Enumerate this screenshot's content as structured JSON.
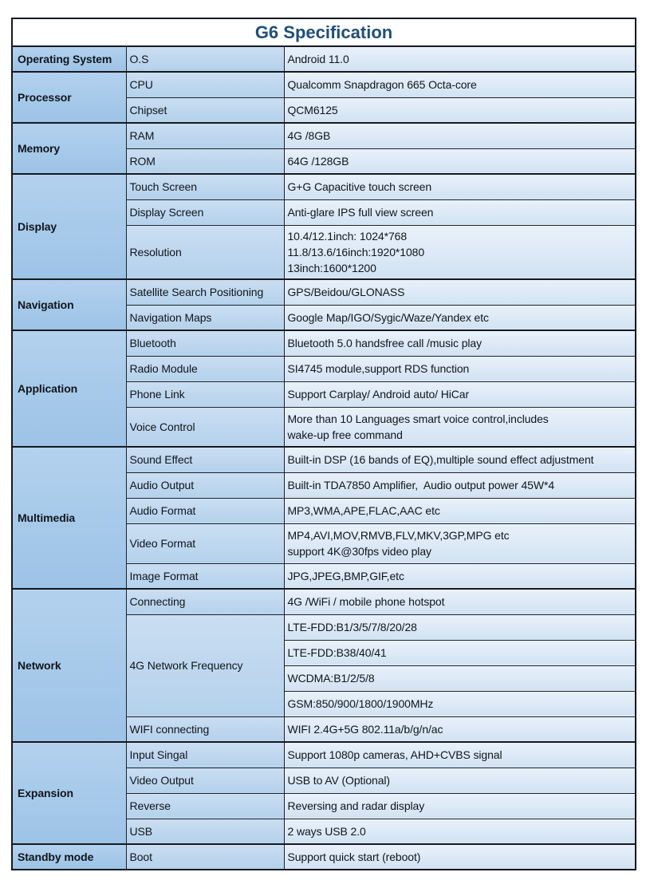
{
  "title": "G6 Specification",
  "colors": {
    "title_text": "#1f4e79",
    "border": "#15191f",
    "category_bg_top": "#b2d1ee",
    "category_bg_bottom": "#9dc3e6",
    "label_bg_top": "#cadef2",
    "label_bg_bottom": "#b4d1eb",
    "value_bg_top": "#e8f1fa",
    "value_bg_bottom": "#d2e2f2",
    "text": "#10161d"
  },
  "table": {
    "sections": [
      {
        "category": "Operating System",
        "rows": [
          {
            "label": "O.S",
            "value": "Android 11.0"
          }
        ]
      },
      {
        "category": "Processor",
        "rows": [
          {
            "label": "CPU",
            "value": "Qualcomm Snapdragon 665 Octa-core"
          },
          {
            "label": "Chipset",
            "value": "QCM6125"
          }
        ]
      },
      {
        "category": "Memory",
        "rows": [
          {
            "label": "RAM",
            "value": "4G /8GB"
          },
          {
            "label": "ROM",
            "value": "64G /128GB"
          }
        ]
      },
      {
        "category": "Display",
        "rows": [
          {
            "label": "Touch Screen",
            "value": "G+G Capacitive touch screen"
          },
          {
            "label": "Display Screen",
            "value": "Anti-glare IPS full view screen"
          },
          {
            "label": "Resolution",
            "lines": [
              "10.4/12.1inch: 1024*768",
              "11.8/13.6/16inch:1920*1080",
              "13inch:1600*1200"
            ]
          }
        ]
      },
      {
        "category": "Navigation",
        "rows": [
          {
            "label": "Satellite Search Positioning",
            "value": "GPS/Beidou/GLONASS"
          },
          {
            "label": "Navigation Maps",
            "value": "Google Map/IGO/Sygic/Waze/Yandex etc"
          }
        ]
      },
      {
        "category": "Application",
        "rows": [
          {
            "label": "Bluetooth",
            "value": "Bluetooth 5.0 handsfree call /music play"
          },
          {
            "label": "Radio Module",
            "value": "SI4745 module,support RDS function"
          },
          {
            "label": "Phone Link",
            "value": "Support Carplay/ Android auto/ HiCar"
          },
          {
            "label": "Voice Control",
            "lines": [
              "More than 10 Languages smart voice control,includes",
              "wake-up free command"
            ]
          }
        ]
      },
      {
        "category": "Multimedia",
        "rows": [
          {
            "label": "Sound Effect",
            "value": "Built-in DSP (16 bands of EQ),multiple sound effect adjustment"
          },
          {
            "label": "Audio Output",
            "value": "Built-in TDA7850 Amplifier,  Audio output power 45W*4"
          },
          {
            "label": "Audio Format",
            "value": "MP3,WMA,APE,FLAC,AAC etc"
          },
          {
            "label": "Video Format",
            "lines": [
              "MP4,AVI,MOV,RMVB,FLV,MKV,3GP,MPG etc",
              "support 4K@30fps video play"
            ]
          },
          {
            "label": "Image Format",
            "value": "JPG,JPEG,BMP,GIF,etc"
          }
        ]
      },
      {
        "category": "Network",
        "rows": [
          {
            "label": "Connecting",
            "value": "4G /WiFi / mobile phone hotspot"
          },
          {
            "label": "4G Network Frequency",
            "values": [
              "LTE-FDD:B1/3/5/7/8/20/28",
              "LTE-FDD:B38/40/41",
              "WCDMA:B1/2/5/8",
              "GSM:850/900/1800/1900MHz"
            ]
          },
          {
            "label": "WIFI connecting",
            "value": "WIFI 2.4G+5G 802.11a/b/g/n/ac"
          }
        ]
      },
      {
        "category": "Expansion",
        "rows": [
          {
            "label": "Input Singal",
            "value": "Support 1080p cameras, AHD+CVBS signal"
          },
          {
            "label": "Video Output",
            "value": "USB to AV (Optional)"
          },
          {
            "label": "Reverse",
            "value": "Reversing and radar display"
          },
          {
            "label": "USB",
            "value": "2 ways USB 2.0"
          }
        ]
      },
      {
        "category": "Standby mode",
        "rows": [
          {
            "label": "Boot",
            "value": "Support quick start (reboot)"
          }
        ]
      }
    ]
  }
}
